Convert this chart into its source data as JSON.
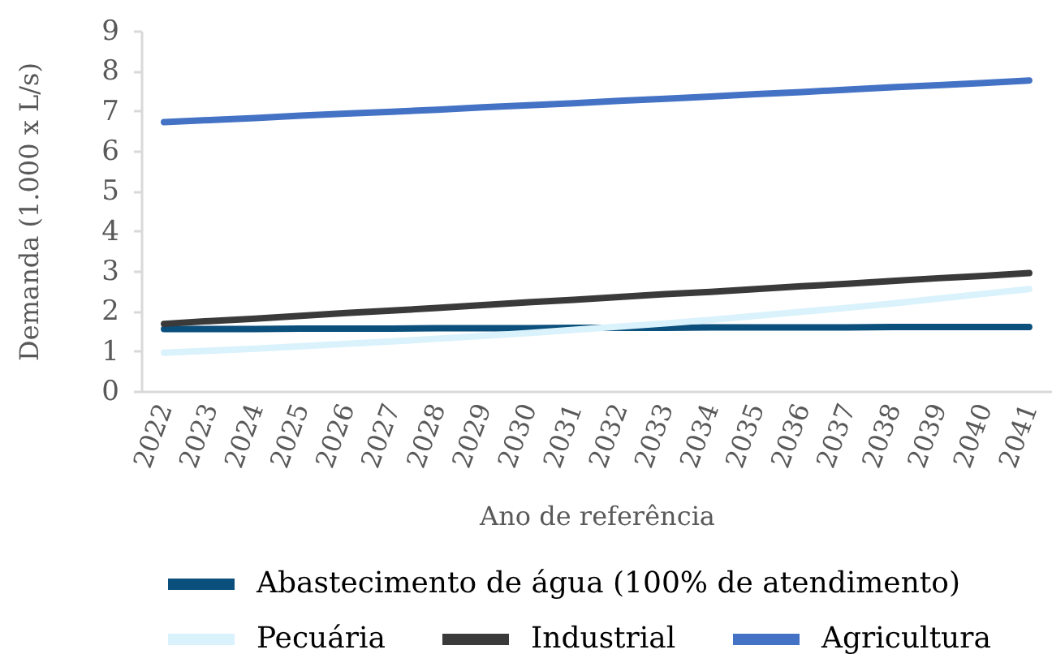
{
  "chart_data": {
    "type": "line",
    "xlabel": "Ano de referência",
    "ylabel": "Demanda (1.000 x L/s)",
    "categories": [
      "2022",
      "2023",
      "2024",
      "2025",
      "2026",
      "2027",
      "2028",
      "2029",
      "2030",
      "2031",
      "2032",
      "2033",
      "2034",
      "2035",
      "2036",
      "2037",
      "2038",
      "2039",
      "2040",
      "2041"
    ],
    "series": [
      {
        "name": "Abastecimento de água (100% de atendimento)",
        "color": "#0b4f7c",
        "values": [
          1.55,
          1.55,
          1.55,
          1.56,
          1.56,
          1.56,
          1.57,
          1.57,
          1.57,
          1.58,
          1.58,
          1.58,
          1.59,
          1.59,
          1.59,
          1.59,
          1.6,
          1.6,
          1.6,
          1.6
        ]
      },
      {
        "name": "Pecuária",
        "color": "#daf2fb",
        "values": [
          0.96,
          1.01,
          1.06,
          1.12,
          1.18,
          1.24,
          1.31,
          1.38,
          1.45,
          1.53,
          1.61,
          1.69,
          1.78,
          1.88,
          1.98,
          2.08,
          2.19,
          2.31,
          2.43,
          2.55
        ]
      },
      {
        "name": "Industrial",
        "color": "#3a3a3a",
        "values": [
          1.68,
          1.75,
          1.81,
          1.88,
          1.95,
          2.01,
          2.08,
          2.15,
          2.22,
          2.28,
          2.35,
          2.42,
          2.48,
          2.55,
          2.62,
          2.68,
          2.75,
          2.82,
          2.88,
          2.95
        ]
      },
      {
        "name": "Agricultura",
        "color": "#4472c4",
        "values": [
          6.72,
          6.77,
          6.82,
          6.88,
          6.93,
          6.98,
          7.03,
          7.09,
          7.14,
          7.19,
          7.25,
          7.3,
          7.36,
          7.42,
          7.47,
          7.53,
          7.59,
          7.64,
          7.7,
          7.76
        ]
      }
    ],
    "ylim": [
      0,
      9
    ],
    "yticks": [
      0,
      1,
      2,
      3,
      4,
      5,
      6,
      7,
      8,
      9
    ],
    "grid": false,
    "legend": "bottom"
  }
}
